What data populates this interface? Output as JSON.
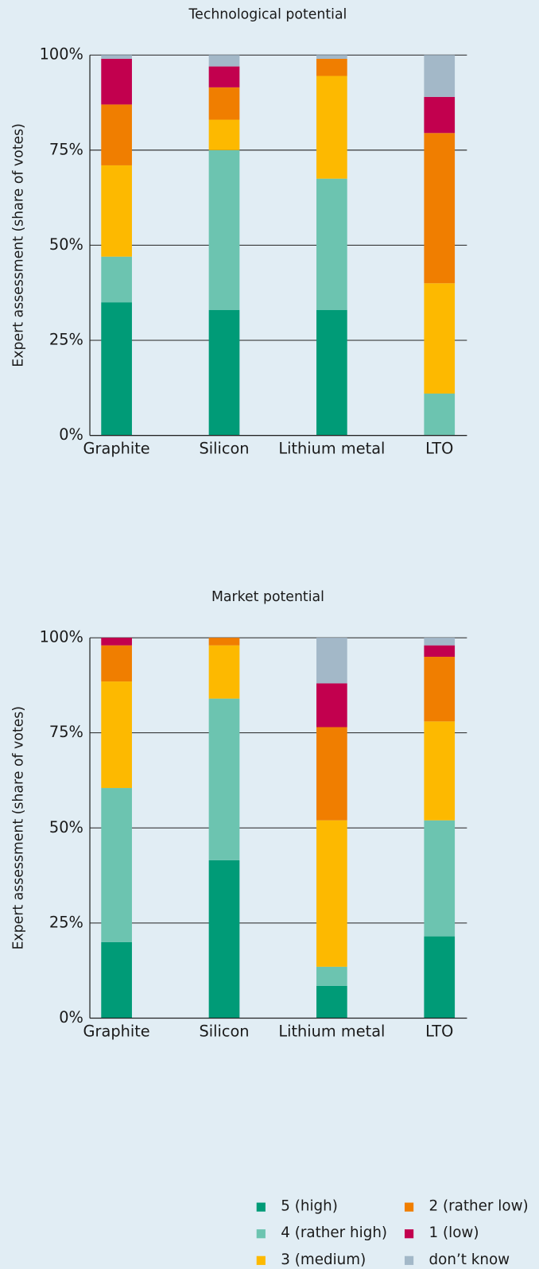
{
  "legend": [
    {
      "name": "5 (high)",
      "color": "#009b77"
    },
    {
      "name": "4 (rather high)",
      "color": "#6cc4b0"
    },
    {
      "name": "3 (medium)",
      "color": "#fdb900"
    },
    {
      "name": "2 (rather low)",
      "color": "#f07e00"
    },
    {
      "name": "1 (low)",
      "color": "#c2004e"
    },
    {
      "name": "don’t know",
      "color": "#a3b8c8"
    }
  ],
  "chart_data": [
    {
      "type": "stacked_bar",
      "title": "Technological potential",
      "y_label": "Expert assessment (share of votes)",
      "categories": [
        "Graphite",
        "Silicon",
        "Lithium metal",
        "LTO"
      ],
      "series": [
        {
          "values": [
            35,
            33,
            33,
            0
          ]
        },
        {
          "values": [
            12,
            42,
            34.5,
            11
          ]
        },
        {
          "values": [
            24,
            8,
            27,
            29
          ]
        },
        {
          "values": [
            16,
            8.5,
            4.5,
            39.5
          ]
        },
        {
          "values": [
            12,
            5.5,
            0,
            9.5
          ]
        },
        {
          "values": [
            1,
            3,
            1,
            11
          ]
        }
      ],
      "ylim": [
        0,
        100
      ],
      "yticks": [
        {
          "value": 0,
          "label": "0%"
        },
        {
          "value": 25,
          "label": "25%"
        },
        {
          "value": 50,
          "label": "50%"
        },
        {
          "value": 75,
          "label": "75%"
        },
        {
          "value": 100,
          "label": "100%"
        }
      ],
      "grid": true
    },
    {
      "type": "stacked_bar",
      "title": "Market potential",
      "y_label": "Expert assessment (share of votes)",
      "categories": [
        "Graphite",
        "Silicon",
        "Lithium metal",
        "LTO"
      ],
      "series": [
        {
          "values": [
            20,
            41.5,
            8.5,
            21.5
          ]
        },
        {
          "values": [
            40.5,
            42.5,
            5,
            30.5
          ]
        },
        {
          "values": [
            28,
            14,
            38.5,
            26
          ]
        },
        {
          "values": [
            9.5,
            2,
            24.5,
            17
          ]
        },
        {
          "values": [
            2,
            0,
            11.5,
            3
          ]
        },
        {
          "values": [
            0,
            0,
            12,
            2
          ]
        }
      ],
      "ylim": [
        0,
        100
      ],
      "yticks": [
        {
          "value": 0,
          "label": "0%"
        },
        {
          "value": 25,
          "label": "25%"
        },
        {
          "value": 50,
          "label": "50%"
        },
        {
          "value": 75,
          "label": "75%"
        },
        {
          "value": 100,
          "label": "100%"
        }
      ],
      "grid": true
    }
  ]
}
